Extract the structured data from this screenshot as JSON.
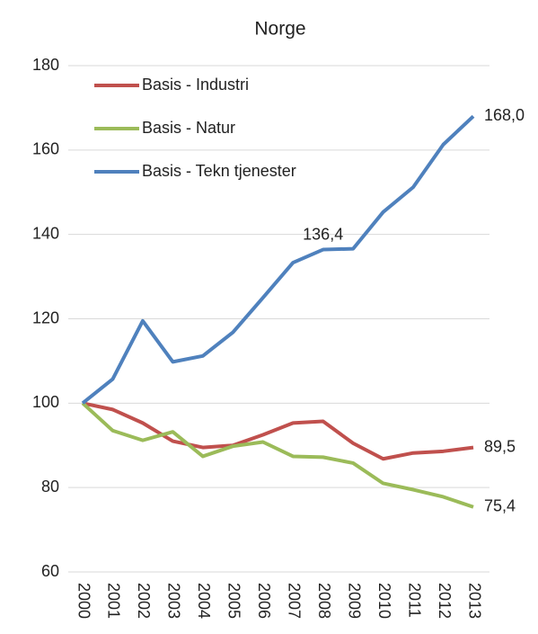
{
  "chart_data": {
    "type": "line",
    "title": "Norge",
    "categories": [
      "2000",
      "2001",
      "2002",
      "2003",
      "2004",
      "2005",
      "2006",
      "2007",
      "2008",
      "2009",
      "2010",
      "2011",
      "2012",
      "2013"
    ],
    "series": [
      {
        "name": "Basis - Industri",
        "color": "#c0504d",
        "values": [
          100,
          98.5,
          95.3,
          91,
          89.5,
          90,
          92.5,
          95.3,
          95.7,
          90.5,
          86.8,
          88.2,
          88.6,
          89.5
        ],
        "value_labels": [
          null,
          null,
          null,
          null,
          null,
          null,
          null,
          null,
          null,
          null,
          null,
          null,
          null,
          "89,5"
        ]
      },
      {
        "name": "Basis - Natur",
        "color": "#9bbb59",
        "values": [
          100,
          93.5,
          91.2,
          93.2,
          87.4,
          89.8,
          90.8,
          87.4,
          87.2,
          85.8,
          81,
          79.5,
          77.8,
          75.4
        ],
        "value_labels": [
          null,
          null,
          null,
          null,
          null,
          null,
          null,
          null,
          null,
          null,
          null,
          null,
          null,
          "75,4"
        ]
      },
      {
        "name": "Basis - Tekn tjenester",
        "color": "#4f81bd",
        "values": [
          100,
          105.7,
          119.5,
          109.8,
          111.2,
          116.8,
          125,
          133.3,
          136.4,
          136.6,
          145.3,
          151.2,
          161.3,
          168.0
        ],
        "value_labels": [
          null,
          null,
          null,
          null,
          null,
          null,
          null,
          null,
          "136,4",
          null,
          null,
          null,
          null,
          "168,0"
        ]
      }
    ],
    "ylim": [
      60,
      180
    ],
    "yticks": [
      60,
      80,
      100,
      120,
      140,
      160,
      180
    ],
    "grid": true,
    "legend": "top-left"
  }
}
